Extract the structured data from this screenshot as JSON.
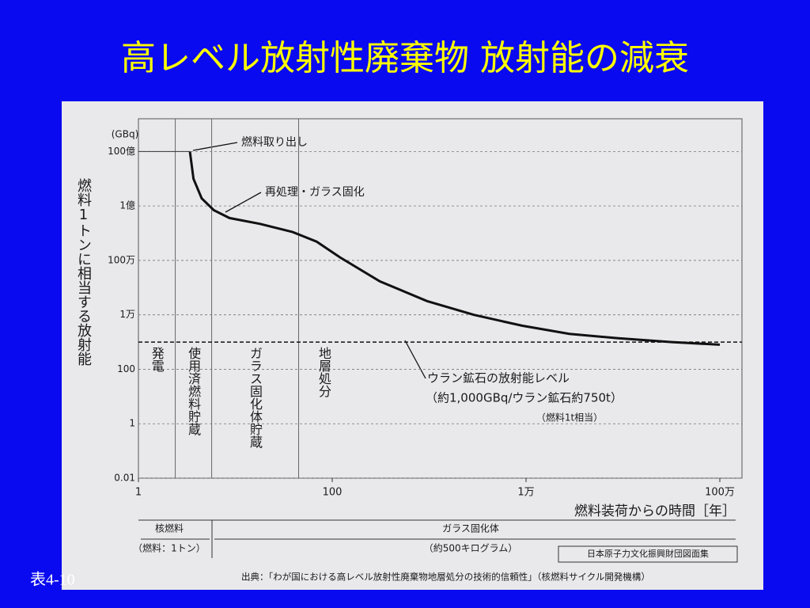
{
  "slide": {
    "title": "高レベル放射性廃棄物 放射能の減衰",
    "label": "表4-10"
  },
  "chart_data": {
    "type": "line",
    "y_unit": "(GBq)",
    "y_label": "燃料1トンに相当する放射能",
    "x_label": "燃料装荷からの時間［年］",
    "xscale": "log",
    "yscale": "log",
    "xlim": [
      1,
      1000000
    ],
    "ylim": [
      0.01,
      100000000000
    ],
    "xticks": [
      1,
      100,
      {
        "value": 10000,
        "label": "1万"
      },
      {
        "value": 1000000,
        "label": "100万"
      }
    ],
    "yticks": [
      {
        "value": 10000000000,
        "label": "100億"
      },
      {
        "value": 100000000,
        "label": "1億"
      },
      {
        "value": 1000000,
        "label": "100万"
      },
      {
        "value": 10000,
        "label": "1万"
      },
      100,
      1,
      0.01
    ],
    "grid": true,
    "series": [
      {
        "color": "#111111",
        "x": [
          3.4,
          3.7,
          4.5,
          6,
          8.7,
          18,
          39,
          69,
          120,
          310,
          950,
          2900,
          9100,
          28000,
          87000,
          320000,
          1000000
        ],
        "values": [
          10000000000,
          1000000000,
          190000000,
          70000000,
          36000000,
          22000000,
          11000000,
          4900000,
          1300000,
          170000,
          32000,
          10000,
          4000,
          2000,
          1400,
          1000,
          800
        ]
      }
    ],
    "reference_value": 1000,
    "phase_boundaries": [
      2.4,
      5.7,
      45
    ],
    "phases": [
      "発電",
      "使用済燃料貯蔵",
      "ガラス固化体貯蔵",
      "地層処分"
    ],
    "annotations": [
      "燃料取り出し",
      "再処理・ガラス固化",
      "ウラン鉱石の放射能レベル",
      "（約1,000GBq/ウラン鉱石約750t）",
      "（燃料1t相当）"
    ],
    "periods": [
      {
        "label": "核燃料",
        "sublabel": "（燃料：1トン）"
      },
      {
        "label": "ガラス固化体",
        "sublabel": "（約500キログラム）"
      }
    ],
    "credit": "日本原子力文化振興財団図面集",
    "source": "出典：「わが国における高レベル放射性廃棄物地層処分の技術的信頼性」（核燃料サイクル開発機構）"
  }
}
